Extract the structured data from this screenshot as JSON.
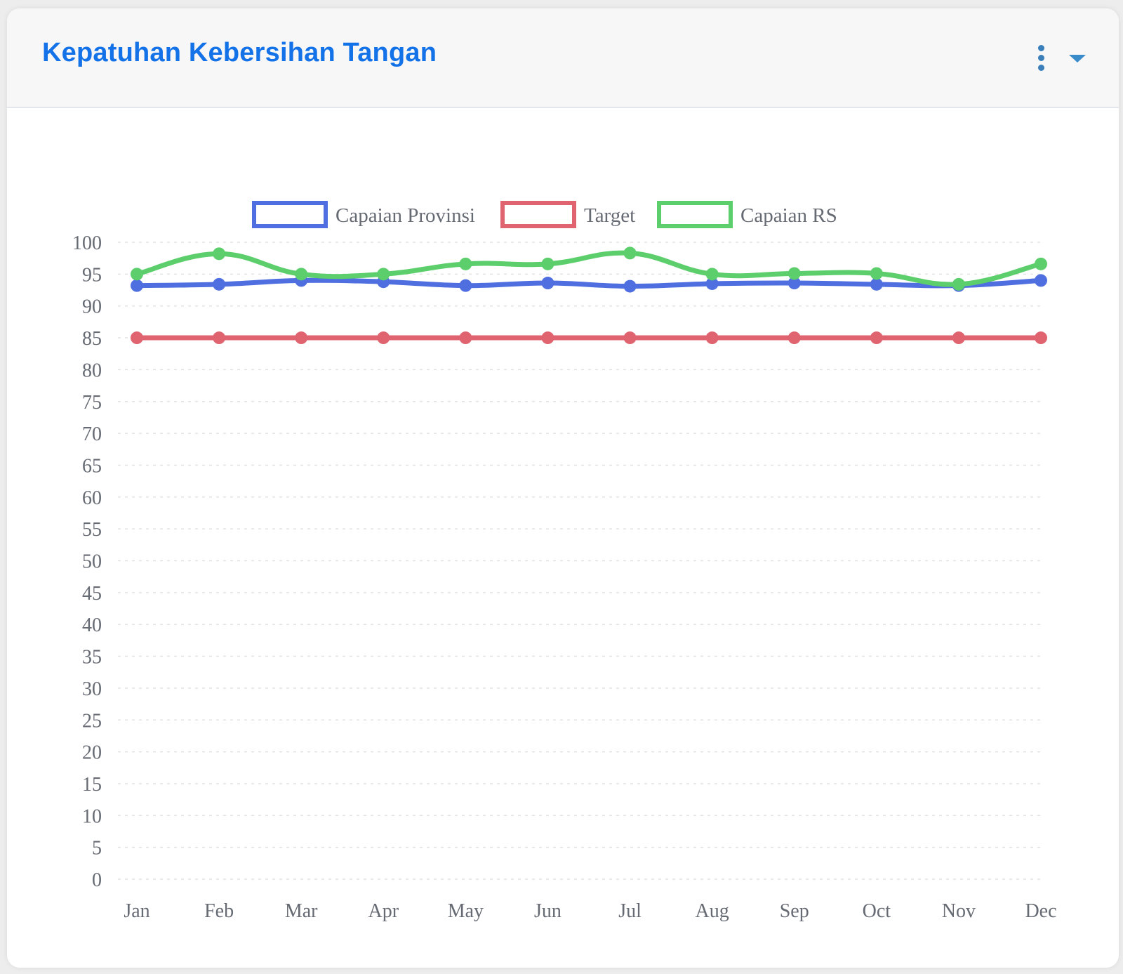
{
  "card": {
    "title": "Kepatuhan Kebersihan Tangan"
  },
  "icons": {
    "menu": "vertical-ellipsis-icon",
    "collapse": "caret-down-icon"
  },
  "colors": {
    "title": "#1472e8",
    "icon": "#3a7fba"
  },
  "chart_data": {
    "type": "line",
    "categories": [
      "Jan",
      "Feb",
      "Mar",
      "Apr",
      "May",
      "Jun",
      "Jul",
      "Aug",
      "Sep",
      "Oct",
      "Nov",
      "Dec"
    ],
    "series": [
      {
        "name": "Capaian Provinsi",
        "color": "#4f6fe0",
        "values": [
          93.2,
          93.4,
          94.0,
          93.8,
          93.2,
          93.6,
          93.1,
          93.5,
          93.6,
          93.4,
          93.2,
          94.0
        ]
      },
      {
        "name": "Target",
        "color": "#e06370",
        "values": [
          85,
          85,
          85,
          85,
          85,
          85,
          85,
          85,
          85,
          85,
          85,
          85
        ]
      },
      {
        "name": "Capaian RS",
        "color": "#5ccf6c",
        "values": [
          95.0,
          98.2,
          95.0,
          95.0,
          96.6,
          96.6,
          98.3,
          95.0,
          95.1,
          95.1,
          93.4,
          96.6
        ]
      }
    ],
    "ylim": [
      0,
      100
    ],
    "yticks": [
      0,
      5,
      10,
      15,
      20,
      25,
      30,
      35,
      40,
      45,
      50,
      55,
      60,
      65,
      70,
      75,
      80,
      85,
      90,
      95,
      100
    ],
    "xlabel": "",
    "ylabel": "",
    "grid": true,
    "legend_position": "top"
  }
}
